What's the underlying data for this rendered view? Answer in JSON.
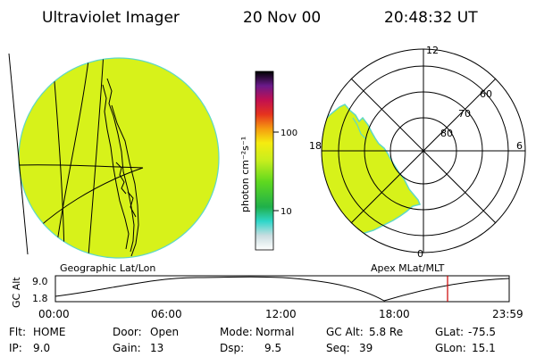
{
  "header": {
    "title": "Ultraviolet Imager",
    "date": "20 Nov 00",
    "time": "20:48:32 UT"
  },
  "colorbar": {
    "unit_label": "photon cm⁻²s⁻¹",
    "ticks": [
      "100",
      "10"
    ]
  },
  "left_panel": {
    "caption": "Geographic Lat/Lon"
  },
  "right_panel": {
    "caption": "Apex MLat/MLT",
    "mlt_labels": {
      "top": "12",
      "left": "18",
      "right": "6",
      "bottom": "0"
    },
    "lat_labels": [
      "60",
      "70",
      "80"
    ]
  },
  "altitude_strip": {
    "axis_label": "GC Alt",
    "y_ticks": [
      "9.0",
      "1.8"
    ],
    "x_ticks": [
      "00:00",
      "06:00",
      "12:00",
      "18:00",
      "23:59"
    ]
  },
  "status": {
    "row1": [
      {
        "key": "Flt:",
        "value": "HOME"
      },
      {
        "key": "Door:",
        "value": "Open"
      },
      {
        "key": "Mode:",
        "value": "Normal"
      },
      {
        "key": "GC Alt:",
        "value": "5.8 Re"
      },
      {
        "key": "GLat:",
        "value": "-75.5"
      }
    ],
    "row2": [
      {
        "key": "IP:",
        "value": "9.0"
      },
      {
        "key": "Gain:",
        "value": "13"
      },
      {
        "key": "Dsp:",
        "value": "9.5"
      },
      {
        "key": "Seq:",
        "value": "39"
      },
      {
        "key": "GLon:",
        "value": "15.1"
      }
    ]
  },
  "colors": {
    "image_fill": "#d7f21a",
    "marker": "#cc0000"
  }
}
